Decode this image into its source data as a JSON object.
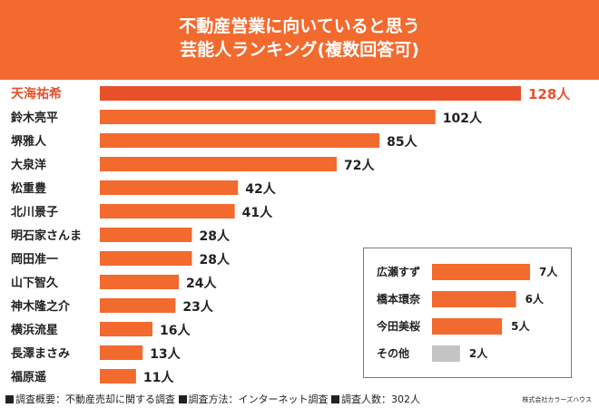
{
  "header": {
    "title_line1": "不動産営業に向いていると思う",
    "title_line2": "芸能人ランキング(複数回答可)"
  },
  "chart_data": {
    "type": "bar",
    "orientation": "horizontal",
    "unit": "人",
    "categories": [
      "天海祐希",
      "鈴木亮平",
      "堺雅人",
      "大泉洋",
      "松重豊",
      "北川景子",
      "明石家さんま",
      "岡田准一",
      "山下智久",
      "神木隆之介",
      "横浜流星",
      "長澤まさみ",
      "福原遥"
    ],
    "values": [
      128,
      102,
      85,
      72,
      42,
      41,
      28,
      28,
      24,
      23,
      16,
      13,
      11
    ],
    "highlight_index": 0,
    "bar_color": "#f26a2e",
    "highlight_color": "#e8502a",
    "others": {
      "categories": [
        "広瀬すず",
        "橋本環奈",
        "今田美桜",
        "その他"
      ],
      "values": [
        7,
        6,
        5,
        2
      ],
      "colors": [
        "#f26a2e",
        "#f26a2e",
        "#f26a2e",
        "#c4c4c4"
      ]
    }
  },
  "footer": {
    "survey_overview": "調査概要：不動産売却に関する調査",
    "survey_method": "調査方法：インターネット調査",
    "survey_count": "調査人数：302人",
    "credit": "株式会社カラーズハウス"
  }
}
